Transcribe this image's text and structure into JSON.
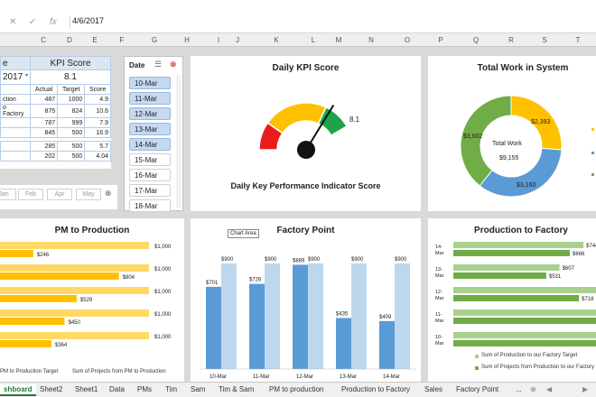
{
  "formula_bar": {
    "cancel": "✕",
    "enter": "✓",
    "fx": "fx",
    "value": "4/6/2017"
  },
  "columns": [
    "C",
    "D",
    "E",
    "F",
    "G",
    "H",
    "I",
    "J",
    "K",
    "L",
    "M",
    "N",
    "O",
    "P",
    "Q",
    "R",
    "S",
    "T"
  ],
  "kpi": {
    "header_left": "e",
    "header_right": "KPI Score",
    "date_value": "2017",
    "score_value": "8.1",
    "col_headers": [
      "Actual",
      "Target",
      "Score"
    ],
    "rows": [
      {
        "label": "ction",
        "actual": "487",
        "target": "1000",
        "score": "4.9"
      },
      {
        "label": "o Factory",
        "actual": "875",
        "target": "824",
        "score": "10.6"
      },
      {
        "label": "",
        "actual": "787",
        "target": "999",
        "score": "7.9"
      },
      {
        "label": "",
        "actual": "845",
        "target": "500",
        "score": "16.9"
      },
      {
        "label": "",
        "actual": "285",
        "target": "500",
        "score": "5.7"
      },
      {
        "label": "",
        "actual": "202",
        "score": "4.04",
        "target": "500"
      }
    ]
  },
  "months": [
    "Jan",
    "Feb",
    "Apr",
    "May"
  ],
  "slicer": {
    "title": "Date",
    "items": [
      {
        "label": "10-Mar",
        "selected": true
      },
      {
        "label": "11-Mar",
        "selected": true
      },
      {
        "label": "12-Mar",
        "selected": true
      },
      {
        "label": "13-Mar",
        "selected": true
      },
      {
        "label": "14-Mar",
        "selected": true
      },
      {
        "label": "15-Mar",
        "selected": false
      },
      {
        "label": "16-Mar",
        "selected": false
      },
      {
        "label": "17-Mar",
        "selected": false
      },
      {
        "label": "18-Mar",
        "selected": false
      }
    ]
  },
  "gauge": {
    "title": "Daily KPI Score",
    "value": "8.1",
    "subtitle": "Daily Key Performance Indicator Score",
    "needle": 8.1,
    "max": 10
  },
  "donut": {
    "title": "Total Work in System",
    "center_label": "Total Work",
    "center_value": "$9,155",
    "slices": [
      {
        "label": "$2,393",
        "value": 2393,
        "color": "#ffc000"
      },
      {
        "label": "$3,160",
        "value": 3160,
        "color": "#5b9bd5"
      },
      {
        "label": "$3,602",
        "value": 3602,
        "color": "#70ad47"
      }
    ]
  },
  "chart_data": [
    {
      "type": "bar",
      "title": "PM to Production",
      "series": [
        {
          "name": "PM to Production Target",
          "values": [
            1000,
            1000,
            1000,
            1000,
            1000
          ],
          "labels": [
            "$1,000",
            "$1,000",
            "$1,000",
            "$1,000",
            "$1,000"
          ],
          "color": "#ffd966"
        },
        {
          "name": "Sum of Projects from PM to Production",
          "values": [
            246,
            804,
            529,
            450,
            364
          ],
          "labels": [
            "$246",
            "$804",
            "$529",
            "$450",
            "$364"
          ],
          "color": "#ffc000"
        }
      ]
    },
    {
      "type": "bar",
      "title": "Factory Point",
      "tooltip": "Chart Area",
      "categories": [
        "10-Mar",
        "11-Mar",
        "12-Mar",
        "13-Mar",
        "14-Mar"
      ],
      "series": [
        {
          "values": [
            701,
            726,
            889,
            435,
            409
          ],
          "labels": [
            "$701",
            "$726",
            "$889",
            "$435",
            "$409"
          ],
          "color": "#5b9bd5"
        },
        {
          "values": [
            900,
            900,
            900,
            900,
            900
          ],
          "labels": [
            "$900",
            "$900",
            "$900",
            "$900",
            "$900"
          ],
          "color": "#bdd7ee"
        }
      ],
      "ylim": [
        0,
        1000
      ]
    },
    {
      "type": "bar",
      "title": "Production to Factory",
      "categories": [
        "14-Mar",
        "13-Mar",
        "12-Mar",
        "11-Mar",
        "10-Mar"
      ],
      "series": [
        {
          "name": "Sum of Production to our Factory Target",
          "values": [
            744,
            607,
            0,
            0,
            0
          ],
          "labels": [
            "$744",
            "$607",
            "",
            "",
            ""
          ],
          "color": "#a9d08e"
        },
        {
          "name": "Sum of Projects from Production to our Factory",
          "values": [
            666,
            531,
            718,
            0,
            0
          ],
          "labels": [
            "$666",
            "$531",
            "$718",
            "",
            ""
          ],
          "color": "#70ad47"
        }
      ]
    }
  ],
  "tabs": [
    "shboard",
    "Sheet2",
    "Sheet1",
    "Data",
    "PMs",
    "Tim",
    "Sam",
    "Tim & Sam",
    "PM to production",
    "Production to Factory",
    "Sales",
    "Factory Point"
  ],
  "tab_more": "...",
  "colors": {
    "excel_green": "#1e7b34",
    "gauge_red": "#e81c1c",
    "gauge_yellow": "#ffc000",
    "gauge_green": "#1ea34a"
  }
}
